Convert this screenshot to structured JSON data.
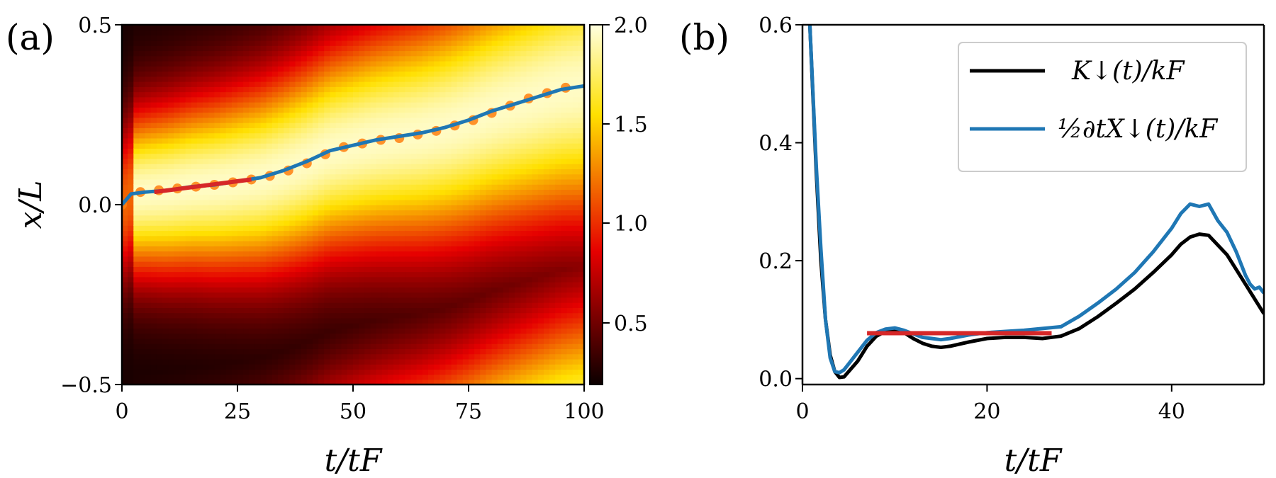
{
  "panel_a": {
    "label": "(a)",
    "xlabel": "t/tF",
    "ylabel": "x/L",
    "colorbar_ticks": [
      "2.0",
      "1.5",
      "1.0",
      "0.5"
    ]
  },
  "panel_b": {
    "label": "(b)",
    "xlabel": "t/tF",
    "legend": [
      "K↓(t)/kF",
      "½∂tX↓(t)/kF"
    ]
  },
  "colors": {
    "black_line": "#000000",
    "blue_line": "#1f77b4",
    "red_fit": "#d62728",
    "orange_dots": "#ff7f0e"
  },
  "chart_data": [
    {
      "type": "heatmap",
      "xlim": [
        0,
        100
      ],
      "ylim": [
        -0.5,
        0.5
      ],
      "xticks": [
        "0",
        "25",
        "50",
        "75",
        "100"
      ],
      "yticks": [
        "0.5",
        "0.0",
        "−0.5"
      ],
      "colorbar": {
        "min": 0.15,
        "max": 2.0,
        "colormap": "hot"
      },
      "series": [
        {
          "name": "center",
          "x": [
            0,
            2,
            5,
            10,
            15,
            20,
            25,
            30,
            35,
            40,
            45,
            50,
            55,
            60,
            65,
            70,
            75,
            80,
            85,
            90,
            95,
            100
          ],
          "y": [
            0.0,
            0.03,
            0.035,
            0.04,
            0.05,
            0.055,
            0.065,
            0.075,
            0.095,
            0.12,
            0.15,
            0.165,
            0.18,
            0.19,
            0.2,
            0.215,
            0.235,
            0.26,
            0.28,
            0.3,
            0.32,
            0.33
          ]
        },
        {
          "name": "fit",
          "x": [
            7,
            28
          ],
          "y": [
            0.035,
            0.07
          ]
        }
      ],
      "dots": {
        "x": [
          0,
          4,
          8,
          12,
          16,
          20,
          24,
          28,
          32,
          36,
          40,
          44,
          48,
          52,
          56,
          60,
          64,
          68,
          72,
          76,
          80,
          84,
          88,
          92,
          96
        ],
        "y": [
          0.0,
          0.035,
          0.04,
          0.045,
          0.05,
          0.055,
          0.062,
          0.07,
          0.08,
          0.095,
          0.115,
          0.14,
          0.16,
          0.17,
          0.18,
          0.185,
          0.195,
          0.205,
          0.22,
          0.235,
          0.255,
          0.275,
          0.295,
          0.31,
          0.325
        ]
      }
    },
    {
      "type": "line",
      "xlim": [
        0,
        50
      ],
      "ylim": [
        -0.01,
        0.6
      ],
      "xticks": [
        "0",
        "20",
        "40"
      ],
      "yticks": [
        "0.0",
        "0.2",
        "0.4",
        "0.6"
      ],
      "series": [
        {
          "name": "K↓(t)/kF",
          "x": [
            0.8,
            1.5,
            2,
            2.5,
            3,
            3.5,
            4,
            4.5,
            5,
            6,
            7,
            8,
            9,
            10,
            11,
            12,
            13,
            14,
            15,
            16,
            18,
            20,
            22,
            24,
            26,
            28,
            30,
            32,
            34,
            36,
            38,
            40,
            41,
            42,
            43,
            44,
            46,
            48,
            50
          ],
          "y": [
            0.6,
            0.35,
            0.2,
            0.1,
            0.04,
            0.012,
            0.002,
            0.003,
            0.012,
            0.03,
            0.055,
            0.072,
            0.08,
            0.082,
            0.078,
            0.068,
            0.06,
            0.055,
            0.053,
            0.055,
            0.062,
            0.068,
            0.07,
            0.07,
            0.068,
            0.072,
            0.085,
            0.105,
            0.128,
            0.152,
            0.18,
            0.21,
            0.228,
            0.24,
            0.245,
            0.243,
            0.21,
            0.16,
            0.11
          ]
        },
        {
          "name": "½∂tX↓(t)/kF",
          "x": [
            0.8,
            1.5,
            2,
            2.5,
            3,
            3.5,
            4,
            4.5,
            5,
            6,
            7,
            8,
            9,
            10,
            11,
            12,
            13,
            14,
            15,
            16,
            18,
            20,
            22,
            24,
            26,
            28,
            30,
            32,
            34,
            36,
            38,
            40,
            41,
            42,
            43,
            44,
            45,
            46,
            47,
            48,
            48.5,
            49,
            49.5,
            50
          ],
          "y": [
            0.6,
            0.36,
            0.22,
            0.1,
            0.035,
            0.012,
            0.01,
            0.015,
            0.025,
            0.045,
            0.065,
            0.078,
            0.084,
            0.086,
            0.082,
            0.076,
            0.07,
            0.068,
            0.066,
            0.068,
            0.074,
            0.078,
            0.08,
            0.082,
            0.085,
            0.088,
            0.106,
            0.128,
            0.152,
            0.18,
            0.215,
            0.255,
            0.28,
            0.296,
            0.292,
            0.296,
            0.268,
            0.248,
            0.215,
            0.175,
            0.16,
            0.152,
            0.155,
            0.145
          ]
        },
        {
          "name": "fit",
          "x": [
            7,
            27
          ],
          "y": [
            0.077,
            0.077
          ]
        }
      ]
    }
  ]
}
